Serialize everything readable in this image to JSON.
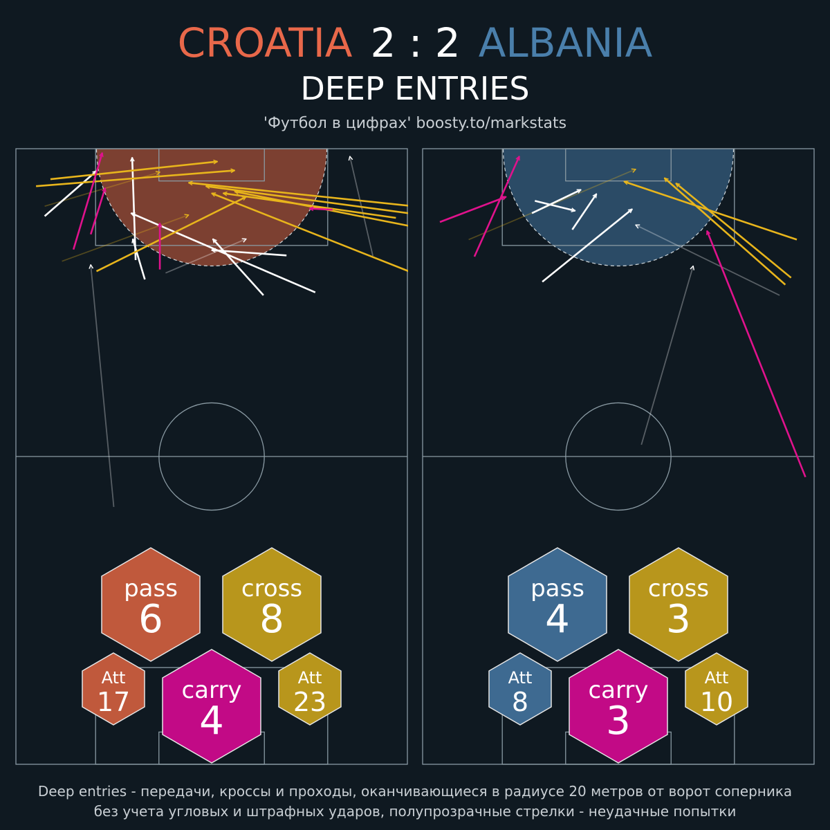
{
  "header": {
    "home_team": "CROATIA",
    "score": "2 : 2",
    "away_team": "ALBANIA",
    "subtitle": "DEEP ENTRIES",
    "source": "'Футбол в цифрах' boosty.to/markstats"
  },
  "footnote": {
    "line1": "Deep entries - передачи, кроссы и проходы, оканчивающиеся в радиусе 20 метров от ворот соперника",
    "line2": "без учета угловых и штрафных ударов, полупрозрачные стрелки - неудачные попытки"
  },
  "colors": {
    "background": "#0f1921",
    "pitch_lines": "#8a9aa3",
    "home": "#c0593c",
    "away": "#3e6a91",
    "pass_arrow": "#ffffff",
    "cross": "#b8961c",
    "cross_arrow": "#e8b51c",
    "carry": "#c20a86",
    "carry_arrow": "#e0128c"
  },
  "chart_data": [
    {
      "type": "scatter",
      "team": "CROATIA",
      "zone_radius_m": 20,
      "stats": {
        "pass": {
          "label": "pass",
          "value": "6"
        },
        "cross": {
          "label": "cross",
          "value": "8"
        },
        "carry": {
          "label": "carry",
          "value": "4"
        },
        "pass_att": {
          "label": "Att",
          "value": "17"
        },
        "cross_att": {
          "label": "Att",
          "value": "23"
        }
      },
      "arrows": [
        {
          "kind": "pass",
          "ok": true,
          "x1": 5.0,
          "y1": 93.5,
          "x2": 14.0,
          "y2": 101.2
        },
        {
          "kind": "pass",
          "ok": true,
          "x1": 20.8,
          "y1": 86.0,
          "x2": 20.2,
          "y2": 103.5
        },
        {
          "kind": "pass",
          "ok": true,
          "x1": 22.4,
          "y1": 82.7,
          "x2": 20.3,
          "y2": 89.6
        },
        {
          "kind": "pass",
          "ok": true,
          "x1": 47.0,
          "y1": 86.8,
          "x2": 34.0,
          "y2": 87.7
        },
        {
          "kind": "pass",
          "ok": true,
          "x1": 43.0,
          "y1": 80.0,
          "x2": 34.2,
          "y2": 89.6
        },
        {
          "kind": "pass",
          "ok": true,
          "x1": 52.0,
          "y1": 80.5,
          "x2": 20.0,
          "y2": 94.0
        },
        {
          "kind": "cross",
          "ok": true,
          "x1": 3.5,
          "y1": 98.6,
          "x2": 38.0,
          "y2": 101.3
        },
        {
          "kind": "cross",
          "ok": true,
          "x1": 6.0,
          "y1": 99.8,
          "x2": 35.0,
          "y2": 102.8
        },
        {
          "kind": "cross",
          "ok": true,
          "x1": 71.0,
          "y1": 95.0,
          "x2": 30.0,
          "y2": 99.2
        },
        {
          "kind": "cross",
          "ok": true,
          "x1": 69.0,
          "y1": 93.9,
          "x2": 33.0,
          "y2": 98.6
        },
        {
          "kind": "cross",
          "ok": true,
          "x1": 66.0,
          "y1": 93.2,
          "x2": 36.0,
          "y2": 97.4
        },
        {
          "kind": "cross",
          "ok": true,
          "x1": 70.0,
          "y1": 91.5,
          "x2": 38.0,
          "y2": 97.7
        },
        {
          "kind": "cross",
          "ok": true,
          "x1": 69.0,
          "y1": 83.8,
          "x2": 34.0,
          "y2": 97.4
        },
        {
          "kind": "cross",
          "ok": true,
          "x1": 14.0,
          "y1": 84.1,
          "x2": 40.0,
          "y2": 96.8
        },
        {
          "kind": "carry",
          "ok": true,
          "x1": 10.0,
          "y1": 87.8,
          "x2": 15.0,
          "y2": 104.3
        },
        {
          "kind": "carry",
          "ok": true,
          "x1": 13.0,
          "y1": 90.4,
          "x2": 15.5,
          "y2": 98.3
        },
        {
          "kind": "carry",
          "ok": true,
          "x1": 25.0,
          "y1": 84.4,
          "x2": 25.0,
          "y2": 92.3
        },
        {
          "kind": "carry",
          "ok": true,
          "x1": 55.0,
          "y1": 94.6,
          "x2": 51.0,
          "y2": 94.8
        },
        {
          "kind": "pass",
          "ok": false,
          "x1": 17.0,
          "y1": 43.9,
          "x2": 13.0,
          "y2": 85.2
        },
        {
          "kind": "pass",
          "ok": false,
          "x1": 62.0,
          "y1": 86.7,
          "x2": 58.0,
          "y2": 103.7
        },
        {
          "kind": "pass",
          "ok": false,
          "x1": 26.0,
          "y1": 83.8,
          "x2": 40.0,
          "y2": 89.6
        },
        {
          "kind": "cross",
          "ok": false,
          "x1": 8.0,
          "y1": 85.8,
          "x2": 30.0,
          "y2": 93.7
        },
        {
          "kind": "cross",
          "ok": false,
          "x1": 5.0,
          "y1": 95.2,
          "x2": 25.0,
          "y2": 101.0
        }
      ]
    },
    {
      "type": "scatter",
      "team": "ALBANIA",
      "zone_radius_m": 20,
      "stats": {
        "pass": {
          "label": "pass",
          "value": "4"
        },
        "cross": {
          "label": "cross",
          "value": "3"
        },
        "carry": {
          "label": "carry",
          "value": "3"
        },
        "pass_att": {
          "label": "Att",
          "value": "8"
        },
        "cross_att": {
          "label": "Att",
          "value": "10"
        }
      },
      "arrows": [
        {
          "kind": "pass",
          "ok": true,
          "x1": 19.0,
          "y1": 94.0,
          "x2": 27.5,
          "y2": 98.0
        },
        {
          "kind": "pass",
          "ok": true,
          "x1": 26.0,
          "y1": 91.2,
          "x2": 30.2,
          "y2": 97.3
        },
        {
          "kind": "pass",
          "ok": true,
          "x1": 20.8,
          "y1": 82.3,
          "x2": 36.4,
          "y2": 94.7
        },
        {
          "kind": "pass",
          "ok": true,
          "x1": 19.5,
          "y1": 96.1,
          "x2": 26.5,
          "y2": 94.4
        },
        {
          "kind": "cross",
          "ok": true,
          "x1": 65.0,
          "y1": 89.5,
          "x2": 35.0,
          "y2": 99.4
        },
        {
          "kind": "cross",
          "ok": true,
          "x1": 63.0,
          "y1": 81.8,
          "x2": 42.0,
          "y2": 100.0
        },
        {
          "kind": "cross",
          "ok": true,
          "x1": 64.0,
          "y1": 83.0,
          "x2": 44.0,
          "y2": 99.1
        },
        {
          "kind": "carry",
          "ok": true,
          "x1": 9.0,
          "y1": 86.6,
          "x2": 16.8,
          "y2": 103.7
        },
        {
          "kind": "carry",
          "ok": true,
          "x1": 3.0,
          "y1": 92.5,
          "x2": 14.5,
          "y2": 96.8
        },
        {
          "kind": "carry",
          "ok": true,
          "x1": 66.5,
          "y1": 49.0,
          "x2": 49.4,
          "y2": 91.0
        },
        {
          "kind": "pass",
          "ok": false,
          "x1": 38.0,
          "y1": 54.5,
          "x2": 47.0,
          "y2": 85.0
        },
        {
          "kind": "pass",
          "ok": false,
          "x1": 62.0,
          "y1": 80.0,
          "x2": 37.0,
          "y2": 92.0
        },
        {
          "kind": "cross",
          "ok": false,
          "x1": 8.0,
          "y1": 89.5,
          "x2": 37.0,
          "y2": 101.5
        }
      ]
    }
  ]
}
